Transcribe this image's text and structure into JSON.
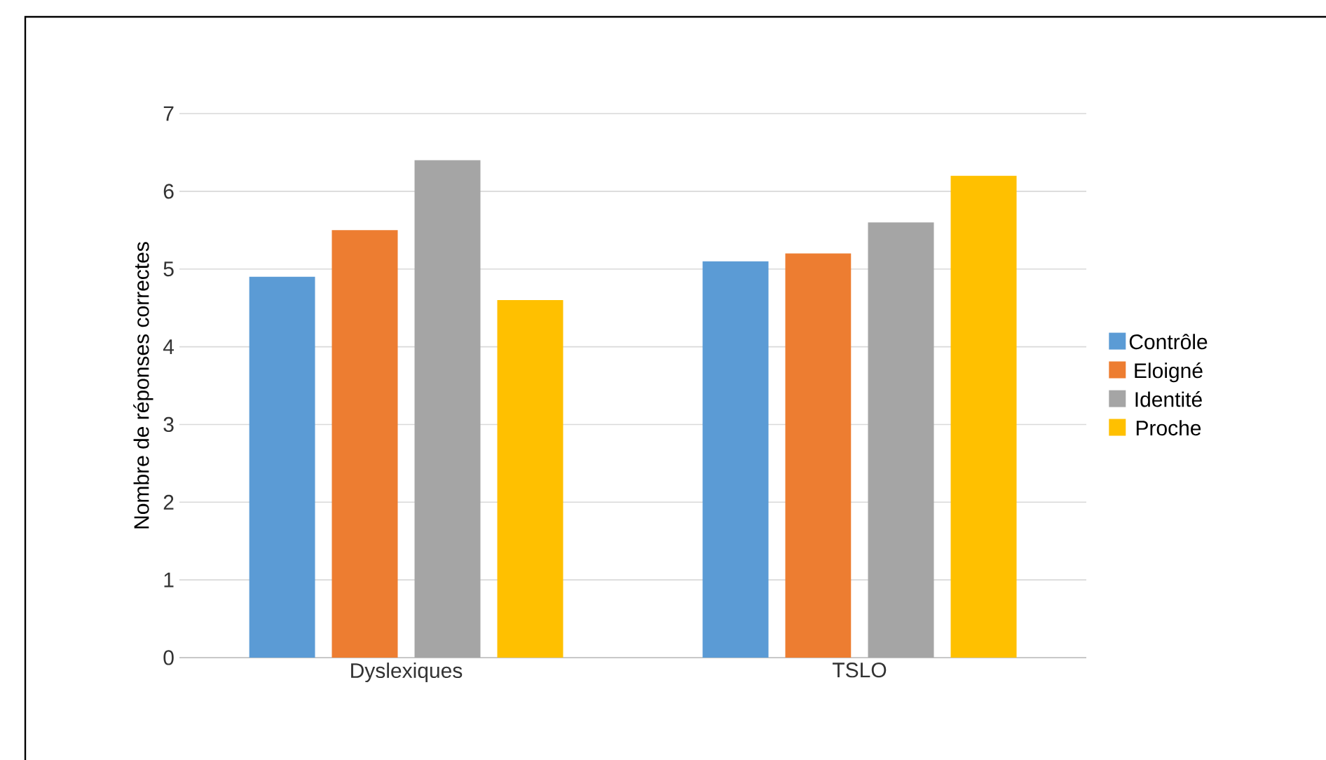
{
  "chart_data": {
    "type": "bar",
    "ylabel": "Nombre de réponses correctes",
    "categories": [
      "Dyslexiques",
      "TSLO"
    ],
    "series": [
      {
        "name": "Contrôle",
        "color": "#5b9bd5",
        "values": [
          4.9,
          5.1
        ]
      },
      {
        "name": "Eloigné",
        "color": "#ed7d31",
        "values": [
          5.5,
          5.2
        ]
      },
      {
        "name": "Identité",
        "color": "#a5a5a5",
        "values": [
          6.4,
          5.6
        ]
      },
      {
        "name": "Proche",
        "color": "#ffc000",
        "values": [
          4.6,
          6.2
        ]
      }
    ],
    "ylim": [
      0,
      7
    ],
    "yticks": [
      0,
      1,
      2,
      3,
      4,
      5,
      6,
      7
    ],
    "grid": "y",
    "legend": "right"
  }
}
